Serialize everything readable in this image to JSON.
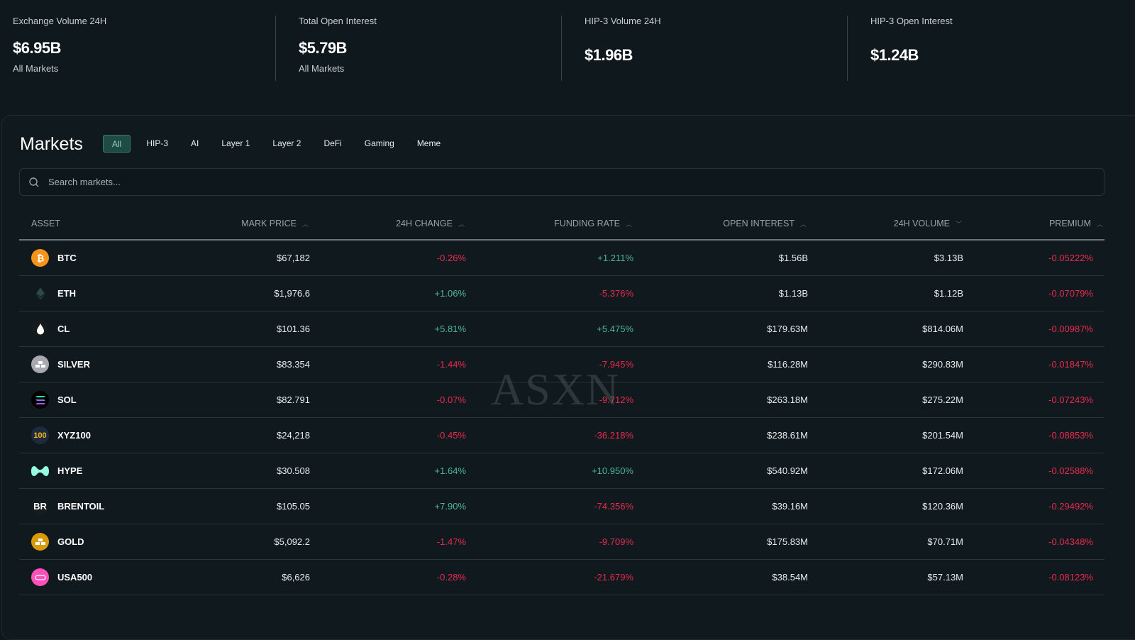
{
  "stats": [
    {
      "label": "Exchange Volume 24H",
      "value": "$6.95B",
      "sub": "All Markets"
    },
    {
      "label": "Total Open Interest",
      "value": "$5.79B",
      "sub": "All Markets"
    },
    {
      "label": "HIP-3 Volume 24H",
      "value": "$1.96B"
    },
    {
      "label": "HIP-3 Open Interest",
      "value": "$1.24B"
    }
  ],
  "markets": {
    "title": "Markets",
    "tabs": [
      "All",
      "HIP-3",
      "AI",
      "Layer 1",
      "Layer 2",
      "DeFi",
      "Gaming",
      "Meme"
    ],
    "active_tab": "All",
    "search_placeholder": "Search markets...",
    "columns": [
      "ASSET",
      "MARK PRICE",
      "24H CHANGE",
      "FUNDING RATE",
      "OPEN INTEREST",
      "24H VOLUME",
      "PREMIUM"
    ],
    "rows": [
      {
        "asset": "BTC",
        "price": "$67,182",
        "change": "-0.26%",
        "funding": "+1.211%",
        "oi": "$1.56B",
        "volume": "$3.13B",
        "premium": "-0.05222%"
      },
      {
        "asset": "ETH",
        "price": "$1,976.6",
        "change": "+1.06%",
        "funding": "-5.376%",
        "oi": "$1.13B",
        "volume": "$1.12B",
        "premium": "-0.07079%"
      },
      {
        "asset": "CL",
        "price": "$101.36",
        "change": "+5.81%",
        "funding": "+5.475%",
        "oi": "$179.63M",
        "volume": "$814.06M",
        "premium": "-0.00987%"
      },
      {
        "asset": "SILVER",
        "price": "$83.354",
        "change": "-1.44%",
        "funding": "-7.945%",
        "oi": "$116.28M",
        "volume": "$290.83M",
        "premium": "-0.01847%"
      },
      {
        "asset": "SOL",
        "price": "$82.791",
        "change": "-0.07%",
        "funding": "-9.712%",
        "oi": "$263.18M",
        "volume": "$275.22M",
        "premium": "-0.07243%"
      },
      {
        "asset": "XYZ100",
        "icon_text": "100",
        "price": "$24,218",
        "change": "-0.45%",
        "funding": "-36.218%",
        "oi": "$238.61M",
        "volume": "$201.54M",
        "premium": "-0.08853%"
      },
      {
        "asset": "HYPE",
        "price": "$30.508",
        "change": "+1.64%",
        "funding": "+10.950%",
        "oi": "$540.92M",
        "volume": "$172.06M",
        "premium": "-0.02588%"
      },
      {
        "asset": "BRENTOIL",
        "icon_text": "BR",
        "price": "$105.05",
        "change": "+7.90%",
        "funding": "-74.356%",
        "oi": "$39.16M",
        "volume": "$120.36M",
        "premium": "-0.29492%"
      },
      {
        "asset": "GOLD",
        "price": "$5,092.2",
        "change": "-1.47%",
        "funding": "-9.709%",
        "oi": "$175.83M",
        "volume": "$70.71M",
        "premium": "-0.04348%"
      },
      {
        "asset": "USA500",
        "price": "$6,626",
        "change": "-0.28%",
        "funding": "-21.679%",
        "oi": "$38.54M",
        "volume": "$57.13M",
        "premium": "-0.08123%"
      }
    ]
  },
  "watermark": "ASXN",
  "colors": {
    "negative": "#e8294f",
    "positive": "#4fb59a",
    "accent": "#1f4b45"
  }
}
